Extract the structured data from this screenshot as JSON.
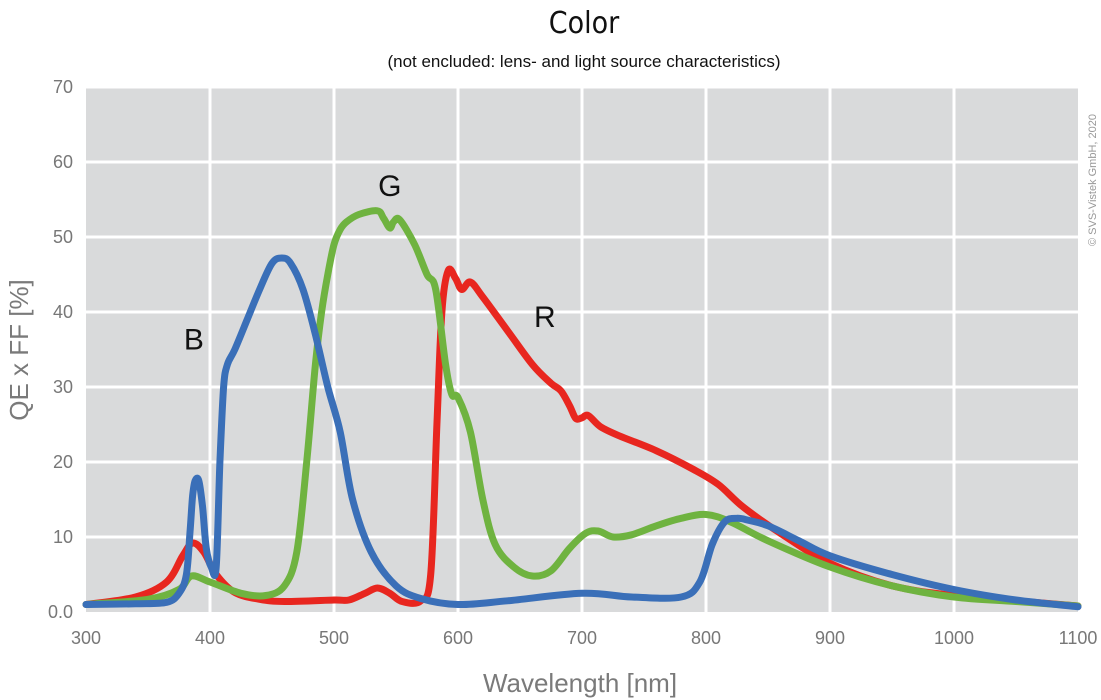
{
  "chart_data": {
    "type": "line",
    "title": "Color",
    "subtitle": "(not encluded: lens- and light source characteristics)",
    "xlabel": "Wavelength [nm]",
    "ylabel": "QE x FF [%]",
    "xlim": [
      300,
      1100
    ],
    "ylim": [
      0,
      70
    ],
    "xticks": [
      "300",
      "400",
      "500",
      "600",
      "700",
      "800",
      "900",
      "1000",
      "1100"
    ],
    "yticks": [
      "0.0",
      "10",
      "20",
      "30",
      "40",
      "50",
      "60",
      "70"
    ],
    "grid": true,
    "copyright": "© SVS-Vistek GmbH, 2020",
    "series": [
      {
        "name": "R",
        "color": "#e8261f",
        "x": [
          300,
          340,
          365,
          378,
          386,
          395,
          405,
          420,
          440,
          460,
          500,
          512,
          525,
          535,
          545,
          555,
          570,
          578,
          583,
          587,
          592,
          598,
          603,
          610,
          620,
          640,
          660,
          675,
          683,
          690,
          695,
          700,
          705,
          715,
          730,
          760,
          790,
          810,
          830,
          860,
          900,
          950,
          1000,
          1050,
          1100
        ],
        "y": [
          1.0,
          2.0,
          4.0,
          7.5,
          9.2,
          8.0,
          5.0,
          2.6,
          1.7,
          1.4,
          1.6,
          1.6,
          2.5,
          3.2,
          2.5,
          1.4,
          1.5,
          5.0,
          25.0,
          40.0,
          45.5,
          44.5,
          43.0,
          44.0,
          42.0,
          37.5,
          33.0,
          30.5,
          29.5,
          27.5,
          25.8,
          25.9,
          26.2,
          24.7,
          23.5,
          21.5,
          19.0,
          17.0,
          14.0,
          10.5,
          6.5,
          3.5,
          2.2,
          1.5,
          0.8
        ]
      },
      {
        "name": "G",
        "color": "#6fb340",
        "x": [
          300,
          350,
          375,
          385,
          400,
          425,
          445,
          460,
          470,
          478,
          485,
          490,
          495,
          500,
          505,
          510,
          520,
          535,
          540,
          545,
          548,
          553,
          565,
          575,
          582,
          590,
          595,
          600,
          610,
          620,
          630,
          645,
          660,
          675,
          690,
          703,
          713,
          725,
          740,
          760,
          780,
          800,
          820,
          850,
          900,
          950,
          1000,
          1050,
          1100
        ],
        "y": [
          1.0,
          1.7,
          3.0,
          4.8,
          4.0,
          2.5,
          2.2,
          3.5,
          8.0,
          20.0,
          33.0,
          40.0,
          45.0,
          49.0,
          51.0,
          52.0,
          53.0,
          53.5,
          52.5,
          51.2,
          52.0,
          52.3,
          49.0,
          45.0,
          43.0,
          33.0,
          29.0,
          28.6,
          24.0,
          15.0,
          9.0,
          6.0,
          4.8,
          5.5,
          8.5,
          10.5,
          10.8,
          10.0,
          10.3,
          11.5,
          12.5,
          13.0,
          12.0,
          9.5,
          6.0,
          3.5,
          2.0,
          1.4,
          0.8
        ]
      },
      {
        "name": "B",
        "color": "#3a6fb8",
        "x": [
          300,
          340,
          365,
          375,
          381,
          384,
          386,
          388,
          391,
          394,
          397,
          401,
          405,
          408,
          411,
          414,
          420,
          430,
          440,
          450,
          458,
          465,
          475,
          485,
          495,
          505,
          515,
          530,
          550,
          570,
          600,
          640,
          700,
          740,
          780,
          795,
          805,
          815,
          825,
          835,
          850,
          875,
          900,
          950,
          1000,
          1050,
          1100
        ],
        "y": [
          1.0,
          1.1,
          1.3,
          2.5,
          5.0,
          11.0,
          15.5,
          17.5,
          17.5,
          14.0,
          8.5,
          6.0,
          6.0,
          20.0,
          30.0,
          33.0,
          35.0,
          39.0,
          43.0,
          46.5,
          47.2,
          46.5,
          43.0,
          37.0,
          30.0,
          24.0,
          15.0,
          8.0,
          3.5,
          1.8,
          1.0,
          1.5,
          2.5,
          2.0,
          2.0,
          4.0,
          9.0,
          12.0,
          12.5,
          12.2,
          11.5,
          9.5,
          7.5,
          5.0,
          3.0,
          1.6,
          0.7
        ]
      }
    ],
    "labels": [
      {
        "text": "B",
        "x": 387,
        "y": 35
      },
      {
        "text": "G",
        "x": 545,
        "y": 55.5
      },
      {
        "text": "R",
        "x": 670,
        "y": 38
      }
    ]
  }
}
